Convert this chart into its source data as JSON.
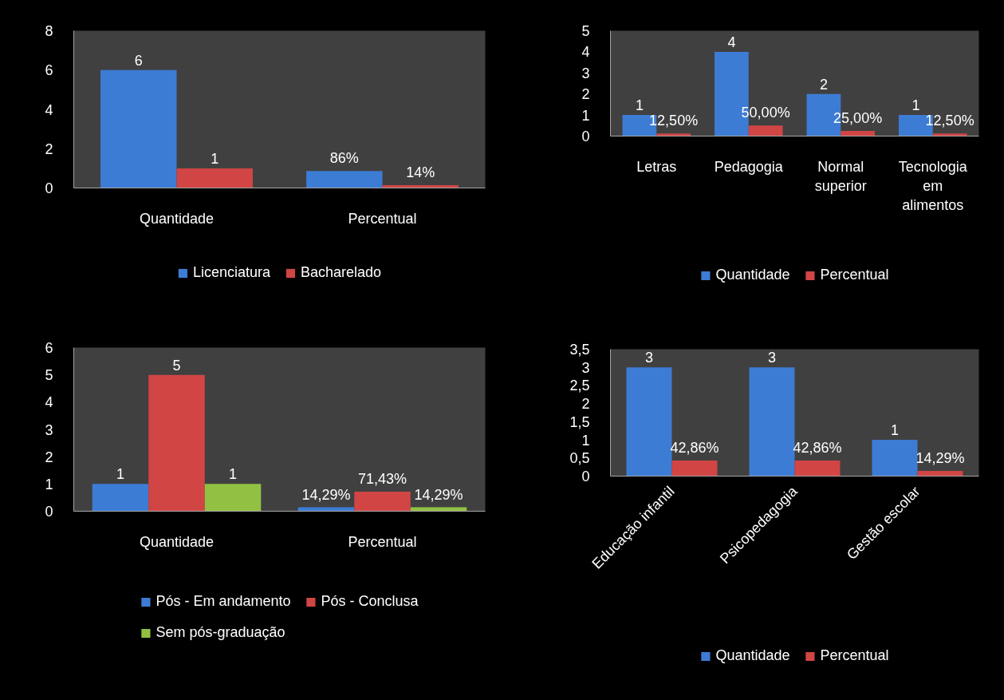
{
  "chart_data": [
    {
      "type": "bar",
      "categories": [
        "Quantidade",
        "Percentual"
      ],
      "series": [
        {
          "name": "Licenciatura",
          "color": "#3d7cd4",
          "values": [
            6,
            0.86
          ],
          "value_labels": [
            "6",
            "86%"
          ]
        },
        {
          "name": "Bacharelado",
          "color": "#d14545",
          "values": [
            1,
            0.14
          ],
          "value_labels": [
            "1",
            "14%"
          ]
        }
      ],
      "ylim": [
        0,
        8
      ],
      "yticks": [
        0,
        2,
        4,
        6,
        8
      ],
      "grid": false,
      "legend": "bottom"
    },
    {
      "type": "bar",
      "categories": [
        "Letras",
        "Pedagogia",
        "Normal superior",
        "Tecnologia em alimentos"
      ],
      "series": [
        {
          "name": "Quantidade",
          "color": "#3d7cd4",
          "values": [
            1,
            4,
            2,
            1
          ],
          "value_labels": [
            "1",
            "4",
            "2",
            "1"
          ]
        },
        {
          "name": "Percentual",
          "color": "#d14545",
          "values": [
            0.125,
            0.5,
            0.25,
            0.125
          ],
          "value_labels": [
            "12,50%",
            "50,00%",
            "25,00%",
            "12,50%"
          ]
        }
      ],
      "ylim": [
        0,
        5
      ],
      "yticks": [
        0,
        1,
        2,
        3,
        4,
        5
      ],
      "grid": false,
      "legend": "bottom"
    },
    {
      "type": "bar",
      "categories": [
        "Quantidade",
        "Percentual"
      ],
      "series": [
        {
          "name": "Pós - Em andamento",
          "color": "#3d7cd4",
          "values": [
            1,
            0.1429
          ],
          "value_labels": [
            "1",
            "14,29%"
          ]
        },
        {
          "name": "Pós - Conclusa",
          "color": "#d14545",
          "values": [
            5,
            0.7143
          ],
          "value_labels": [
            "5",
            "71,43%"
          ]
        },
        {
          "name": "Sem pós-graduação",
          "color": "#92c043",
          "values": [
            1,
            0.1429
          ],
          "value_labels": [
            "1",
            "14,29%"
          ]
        }
      ],
      "ylim": [
        0,
        6
      ],
      "yticks": [
        0,
        1,
        2,
        3,
        4,
        5,
        6
      ],
      "grid": false,
      "legend": "bottom"
    },
    {
      "type": "bar",
      "categories": [
        "Educação infantil",
        "Psicopedagogia",
        "Gestão escolar"
      ],
      "series": [
        {
          "name": "Quantidade",
          "color": "#3d7cd4",
          "values": [
            3,
            3,
            1
          ],
          "value_labels": [
            "3",
            "3",
            "1"
          ]
        },
        {
          "name": "Percentual",
          "color": "#d14545",
          "values": [
            0.4286,
            0.4286,
            0.1429
          ],
          "value_labels": [
            "42,86%",
            "42,86%",
            "14,29%"
          ]
        }
      ],
      "ylim": [
        0,
        3.5
      ],
      "yticks": [
        0,
        {
          "value": 0.5,
          "label": "0,5"
        },
        1,
        {
          "value": 1.5,
          "label": "1,5"
        },
        2,
        {
          "value": 2.5,
          "label": "2,5"
        },
        3,
        {
          "value": 3.5,
          "label": "3,5"
        }
      ],
      "grid": false,
      "legend": "bottom"
    }
  ]
}
